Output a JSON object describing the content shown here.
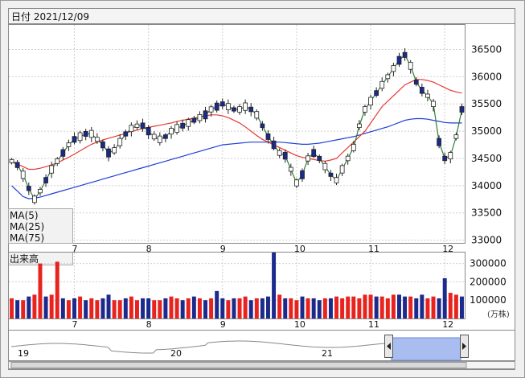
{
  "header": {
    "date_label": "日付 2021/12/09"
  },
  "legend": {
    "ma5": "MA(5)",
    "ma25": "MA(25)",
    "ma75": "MA(75)"
  },
  "volume_panel": {
    "label": "出来高",
    "unit": "(万株)"
  },
  "navigator": {
    "year_labels": [
      "19",
      "20",
      "21"
    ]
  },
  "colors": {
    "up": "#e8231e",
    "down": "#1b2a8c",
    "ma5": "#2e7d32",
    "ma25": "#e53935",
    "ma75": "#1e3fd4",
    "navigator_fill": "#aabdf0"
  },
  "chart_data": [
    {
      "type": "candlestick",
      "x_tick_labels": [
        "7",
        "8",
        "9",
        "10",
        "11",
        "12"
      ],
      "y_ticks": [
        33000,
        33500,
        34000,
        34500,
        35000,
        35500,
        36000,
        36500
      ],
      "ylim": [
        32950,
        36950
      ],
      "series": [
        {
          "name": "MA(5)",
          "values": [
            34450,
            34380,
            34200,
            33950,
            33750,
            33900,
            34100,
            34300,
            34450,
            34600,
            34750,
            34850,
            34900,
            34950,
            34950,
            34850,
            34750,
            34600,
            34650,
            34800,
            34950,
            35050,
            35100,
            35100,
            35000,
            34900,
            34850,
            34900,
            35000,
            35050,
            35100,
            35150,
            35200,
            35250,
            35300,
            35400,
            35450,
            35500,
            35450,
            35400,
            35400,
            35450,
            35400,
            35300,
            35100,
            34900,
            34750,
            34600,
            34550,
            34300,
            34050,
            34200,
            34500,
            34600,
            34500,
            34350,
            34200,
            34100,
            34300,
            34500,
            34700,
            35100,
            35400,
            35550,
            35700,
            35850,
            36000,
            36150,
            36300,
            36400,
            36200,
            35900,
            35750,
            35650,
            35500,
            34800,
            34500,
            34550,
            34900,
            35400
          ]
        },
        {
          "name": "MA(25)",
          "values": [
            34450,
            34400,
            34350,
            34300,
            34300,
            34320,
            34350,
            34380,
            34420,
            34470,
            34520,
            34580,
            34640,
            34700,
            34760,
            34800,
            34840,
            34870,
            34900,
            34930,
            34960,
            35000,
            35020,
            35050,
            35070,
            35090,
            35110,
            35130,
            35150,
            35180,
            35200,
            35220,
            35240,
            35260,
            35280,
            35300,
            35300,
            35280,
            35250,
            35200,
            35150,
            35080,
            35000,
            34920,
            34850,
            34800,
            34750,
            34700,
            34650,
            34600,
            34550,
            34520,
            34500,
            34480,
            34460,
            34450,
            34470,
            34500,
            34600,
            34700,
            34800,
            34900,
            35000,
            35150,
            35300,
            35450,
            35550,
            35650,
            35750,
            35850,
            35900,
            35950,
            35950,
            35930,
            35900,
            35850,
            35800,
            35750,
            35720,
            35700
          ]
        },
        {
          "name": "MA(75)",
          "values": [
            34000,
            33900,
            33800,
            33760,
            33770,
            33790,
            33820,
            33850,
            33880,
            33910,
            33940,
            33970,
            34000,
            34030,
            34060,
            34090,
            34120,
            34150,
            34180,
            34210,
            34240,
            34270,
            34300,
            34330,
            34360,
            34390,
            34420,
            34450,
            34480,
            34510,
            34540,
            34570,
            34600,
            34630,
            34660,
            34690,
            34720,
            34750,
            34760,
            34770,
            34780,
            34790,
            34800,
            34800,
            34800,
            34800,
            34800,
            34800,
            34790,
            34780,
            34770,
            34760,
            34760,
            34770,
            34780,
            34800,
            34820,
            34840,
            34860,
            34880,
            34900,
            34930,
            34960,
            34990,
            35020,
            35050,
            35080,
            35120,
            35160,
            35200,
            35220,
            35230,
            35230,
            35220,
            35200,
            35180,
            35160,
            35150,
            35150,
            35150
          ]
        }
      ]
    },
    {
      "type": "bar",
      "title": "出来高",
      "y_ticks": [
        100000,
        200000,
        300000
      ],
      "ylim": [
        0,
        360000
      ],
      "values": [
        110000,
        100000,
        100000,
        120000,
        130000,
        300000,
        120000,
        130000,
        310000,
        110000,
        100000,
        110000,
        120000,
        100000,
        110000,
        100000,
        110000,
        130000,
        100000,
        100000,
        110000,
        120000,
        100000,
        110000,
        110000,
        100000,
        100000,
        110000,
        120000,
        110000,
        100000,
        110000,
        120000,
        110000,
        100000,
        110000,
        150000,
        110000,
        100000,
        110000,
        110000,
        120000,
        100000,
        110000,
        110000,
        120000,
        360000,
        130000,
        110000,
        110000,
        100000,
        120000,
        110000,
        110000,
        100000,
        110000,
        110000,
        120000,
        110000,
        120000,
        120000,
        110000,
        130000,
        130000,
        120000,
        120000,
        110000,
        130000,
        130000,
        120000,
        120000,
        110000,
        130000,
        110000,
        120000,
        110000,
        220000,
        140000,
        130000,
        120000
      ],
      "up_flags": [
        1,
        0,
        1,
        0,
        1,
        1,
        0,
        1,
        1,
        0,
        1,
        0,
        1,
        0,
        1,
        1,
        0,
        0,
        1,
        1,
        0,
        1,
        1,
        0,
        0,
        1,
        1,
        0,
        1,
        1,
        0,
        1,
        0,
        1,
        0,
        1,
        0,
        0,
        1,
        0,
        1,
        1,
        0,
        1,
        0,
        0,
        0,
        1,
        0,
        1,
        1,
        0,
        1,
        0,
        0,
        1,
        0,
        1,
        1,
        1,
        1,
        1,
        1,
        1,
        0,
        1,
        1,
        1,
        0,
        0,
        1,
        0,
        0,
        1,
        1,
        0,
        0,
        1,
        1,
        0
      ]
    }
  ]
}
